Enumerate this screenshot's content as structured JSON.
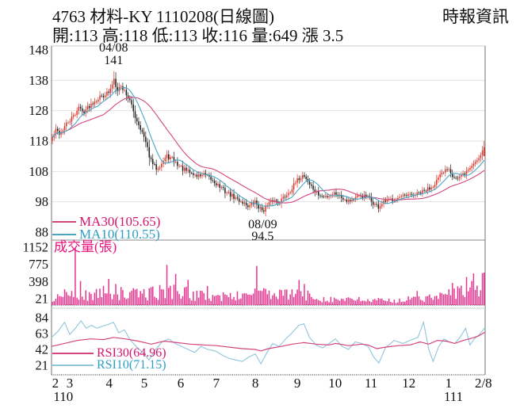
{
  "header": {
    "title": "4763  材料-KY 1110208(日線圖)",
    "source": "時報資訊",
    "quote_line": "開:113 高:118 低:113 收:116 量:649 漲 3.5"
  },
  "colors": {
    "up_candle": "#dd3226",
    "down_candle": "#1d1d1d",
    "ma30": "#d4457e",
    "ma10": "#4aa6c4",
    "ma30_label": "#d4156e",
    "ma10_label": "#2f9ec7",
    "volume": "#e8358f",
    "volume_label": "#e8127c",
    "rsi30": "#d4457e",
    "rsi10": "#8fc5da",
    "rsi30_label": "#d4156e",
    "rsi10_label": "#2f9ec7",
    "grid": "#e2e2e2",
    "border": "#888888",
    "light_border": "#cccccc",
    "axis_text": "#111111"
  },
  "chart_data": {
    "type": "candlestick",
    "title": "4763 材料-KY 1110208(日線圖)",
    "panels": [
      "price-with-moving-averages",
      "volume",
      "rsi"
    ],
    "price": {
      "ylim": [
        88,
        148
      ],
      "yticks": [
        88,
        98,
        108,
        118,
        128,
        138,
        148
      ],
      "grid_yticks": [
        98,
        108,
        118,
        128,
        138
      ],
      "ma30_label": "MA30(105.65)",
      "ma10_label": "MA10(110.55)",
      "ma30_value": 105.65,
      "ma10_value": 110.55,
      "peak_annotation": {
        "date": "04/08",
        "price": "141",
        "t": 0.143
      },
      "trough_annotation": {
        "date": "08/09",
        "price": "94.5",
        "t": 0.487
      },
      "last_candle": {
        "open": 113,
        "high": 118,
        "low": 113,
        "close": 116
      },
      "num_candles": 246,
      "close_waypoints": [
        [
          0.0,
          119
        ],
        [
          0.008,
          121.5
        ],
        [
          0.018,
          120.5
        ],
        [
          0.03,
          123
        ],
        [
          0.042,
          125
        ],
        [
          0.052,
          126.5
        ],
        [
          0.06,
          129.5
        ],
        [
          0.07,
          127.5
        ],
        [
          0.082,
          129
        ],
        [
          0.095,
          131
        ],
        [
          0.11,
          132.5
        ],
        [
          0.122,
          133.5
        ],
        [
          0.133,
          134
        ],
        [
          0.14,
          137.5
        ],
        [
          0.143,
          138.5
        ],
        [
          0.15,
          135
        ],
        [
          0.158,
          136
        ],
        [
          0.168,
          134.5
        ],
        [
          0.18,
          131
        ],
        [
          0.192,
          126
        ],
        [
          0.205,
          122
        ],
        [
          0.215,
          118
        ],
        [
          0.228,
          111.5
        ],
        [
          0.24,
          109
        ],
        [
          0.252,
          110.5
        ],
        [
          0.265,
          113
        ],
        [
          0.278,
          112
        ],
        [
          0.292,
          110
        ],
        [
          0.305,
          108.5
        ],
        [
          0.32,
          107.5
        ],
        [
          0.335,
          106.5
        ],
        [
          0.35,
          107
        ],
        [
          0.365,
          105.5
        ],
        [
          0.38,
          104
        ],
        [
          0.395,
          102
        ],
        [
          0.41,
          100.5
        ],
        [
          0.425,
          99
        ],
        [
          0.44,
          98
        ],
        [
          0.455,
          96.5
        ],
        [
          0.47,
          98
        ],
        [
          0.48,
          95.8
        ],
        [
          0.487,
          95.2
        ],
        [
          0.497,
          96.5
        ],
        [
          0.51,
          98.5
        ],
        [
          0.525,
          98
        ],
        [
          0.54,
          100
        ],
        [
          0.555,
          102.5
        ],
        [
          0.57,
          105.5
        ],
        [
          0.582,
          107
        ],
        [
          0.595,
          104
        ],
        [
          0.61,
          101
        ],
        [
          0.625,
          99.5
        ],
        [
          0.64,
          100
        ],
        [
          0.655,
          101
        ],
        [
          0.67,
          99.5
        ],
        [
          0.685,
          98.5
        ],
        [
          0.7,
          99
        ],
        [
          0.715,
          100
        ],
        [
          0.73,
          99.5
        ],
        [
          0.743,
          97.5
        ],
        [
          0.755,
          96.2
        ],
        [
          0.77,
          98
        ],
        [
          0.79,
          99
        ],
        [
          0.81,
          99.5
        ],
        [
          0.827,
          100
        ],
        [
          0.845,
          100.5
        ],
        [
          0.862,
          101.5
        ],
        [
          0.878,
          103
        ],
        [
          0.893,
          105.5
        ],
        [
          0.905,
          107.5
        ],
        [
          0.917,
          109.5
        ],
        [
          0.928,
          106.5
        ],
        [
          0.94,
          105.5
        ],
        [
          0.952,
          107
        ],
        [
          0.963,
          108.5
        ],
        [
          0.975,
          110.5
        ],
        [
          0.987,
          112.5
        ],
        [
          1.0,
          116
        ]
      ]
    },
    "volume": {
      "title": "成交量(張)",
      "yticks": [
        21,
        398,
        775,
        1152
      ],
      "ymax": 1152,
      "last_volume": 649,
      "base_waypoints": [
        [
          0,
          140
        ],
        [
          0.04,
          220
        ],
        [
          0.08,
          190
        ],
        [
          0.13,
          260
        ],
        [
          0.18,
          210
        ],
        [
          0.23,
          240
        ],
        [
          0.28,
          290
        ],
        [
          0.33,
          190
        ],
        [
          0.38,
          170
        ],
        [
          0.43,
          180
        ],
        [
          0.47,
          260
        ],
        [
          0.52,
          190
        ],
        [
          0.57,
          230
        ],
        [
          0.62,
          130
        ],
        [
          0.67,
          110
        ],
        [
          0.72,
          100
        ],
        [
          0.77,
          85
        ],
        [
          0.82,
          110
        ],
        [
          0.86,
          130
        ],
        [
          0.9,
          170
        ],
        [
          0.94,
          260
        ],
        [
          0.97,
          330
        ],
        [
          1,
          420
        ]
      ],
      "spikes": [
        [
          0.053,
          1140
        ],
        [
          0.066,
          480
        ],
        [
          0.13,
          520
        ],
        [
          0.148,
          420
        ],
        [
          0.265,
          800
        ],
        [
          0.285,
          620
        ],
        [
          0.315,
          500
        ],
        [
          0.36,
          380
        ],
        [
          0.472,
          780
        ],
        [
          0.57,
          500
        ],
        [
          0.582,
          420
        ],
        [
          0.843,
          280
        ],
        [
          0.926,
          440
        ],
        [
          0.958,
          560
        ],
        [
          0.975,
          630
        ],
        [
          1,
          649
        ]
      ]
    },
    "rsi": {
      "yticks": [
        21,
        42,
        63,
        84
      ],
      "rsi30_label": "RSI30(64.96)",
      "rsi10_label": "RSI10(71.15)",
      "rsi30_value": 64.96,
      "rsi10_value": 71.15,
      "rsi30_waypoints": [
        [
          0,
          46
        ],
        [
          0.03,
          50
        ],
        [
          0.06,
          54
        ],
        [
          0.09,
          56
        ],
        [
          0.12,
          55
        ],
        [
          0.143,
          58
        ],
        [
          0.17,
          56
        ],
        [
          0.2,
          53
        ],
        [
          0.23,
          49
        ],
        [
          0.26,
          53
        ],
        [
          0.29,
          51
        ],
        [
          0.32,
          49
        ],
        [
          0.35,
          48
        ],
        [
          0.38,
          47
        ],
        [
          0.41,
          45
        ],
        [
          0.44,
          43
        ],
        [
          0.47,
          42
        ],
        [
          0.483,
          40
        ],
        [
          0.5,
          43
        ],
        [
          0.53,
          46
        ],
        [
          0.555,
          49
        ],
        [
          0.582,
          51
        ],
        [
          0.61,
          49
        ],
        [
          0.64,
          48
        ],
        [
          0.655,
          50
        ],
        [
          0.685,
          47
        ],
        [
          0.715,
          49
        ],
        [
          0.73,
          48
        ],
        [
          0.75,
          43
        ],
        [
          0.77,
          45
        ],
        [
          0.8,
          47
        ],
        [
          0.827,
          48
        ],
        [
          0.85,
          52
        ],
        [
          0.87,
          49
        ],
        [
          0.89,
          54
        ],
        [
          0.91,
          53
        ],
        [
          0.93,
          50
        ],
        [
          0.95,
          54
        ],
        [
          0.97,
          57
        ],
        [
          0.985,
          60
        ],
        [
          1,
          64.96
        ]
      ],
      "rsi10_waypoints": [
        [
          0,
          58
        ],
        [
          0.015,
          66
        ],
        [
          0.03,
          78
        ],
        [
          0.042,
          62
        ],
        [
          0.055,
          70
        ],
        [
          0.068,
          80
        ],
        [
          0.08,
          70
        ],
        [
          0.092,
          74
        ],
        [
          0.105,
          70
        ],
        [
          0.118,
          73
        ],
        [
          0.13,
          75
        ],
        [
          0.143,
          78
        ],
        [
          0.155,
          64
        ],
        [
          0.168,
          68
        ],
        [
          0.18,
          56
        ],
        [
          0.195,
          46
        ],
        [
          0.21,
          38
        ],
        [
          0.225,
          28
        ],
        [
          0.24,
          42
        ],
        [
          0.255,
          52
        ],
        [
          0.27,
          56
        ],
        [
          0.285,
          50
        ],
        [
          0.3,
          46
        ],
        [
          0.315,
          42
        ],
        [
          0.33,
          38
        ],
        [
          0.345,
          46
        ],
        [
          0.36,
          42
        ],
        [
          0.378,
          40
        ],
        [
          0.395,
          34
        ],
        [
          0.41,
          30
        ],
        [
          0.425,
          28
        ],
        [
          0.44,
          26
        ],
        [
          0.455,
          32
        ],
        [
          0.47,
          36
        ],
        [
          0.483,
          23
        ],
        [
          0.497,
          38
        ],
        [
          0.51,
          50
        ],
        [
          0.525,
          46
        ],
        [
          0.54,
          56
        ],
        [
          0.555,
          64
        ],
        [
          0.57,
          74
        ],
        [
          0.582,
          76
        ],
        [
          0.595,
          58
        ],
        [
          0.61,
          48
        ],
        [
          0.625,
          44
        ],
        [
          0.64,
          50
        ],
        [
          0.655,
          56
        ],
        [
          0.67,
          46
        ],
        [
          0.685,
          42
        ],
        [
          0.7,
          52
        ],
        [
          0.715,
          50
        ],
        [
          0.73,
          46
        ],
        [
          0.743,
          32
        ],
        [
          0.755,
          24
        ],
        [
          0.77,
          44
        ],
        [
          0.79,
          54
        ],
        [
          0.81,
          50
        ],
        [
          0.827,
          54
        ],
        [
          0.845,
          58
        ],
        [
          0.858,
          78
        ],
        [
          0.87,
          42
        ],
        [
          0.88,
          26
        ],
        [
          0.893,
          46
        ],
        [
          0.905,
          56
        ],
        [
          0.917,
          52
        ],
        [
          0.93,
          50
        ],
        [
          0.942,
          58
        ],
        [
          0.955,
          70
        ],
        [
          0.965,
          48
        ],
        [
          0.975,
          56
        ],
        [
          0.987,
          62
        ],
        [
          1,
          71.15
        ]
      ]
    },
    "x_axis": {
      "month_ticks": [
        {
          "label": "2",
          "t": 0.009
        },
        {
          "label": "3",
          "t": 0.042
        },
        {
          "label": "4",
          "t": 0.133
        },
        {
          "label": "5",
          "t": 0.214
        },
        {
          "label": "6",
          "t": 0.298
        },
        {
          "label": "7",
          "t": 0.38
        },
        {
          "label": "8",
          "t": 0.47
        },
        {
          "label": "9",
          "t": 0.567
        },
        {
          "label": "10",
          "t": 0.654
        },
        {
          "label": "11",
          "t": 0.737
        },
        {
          "label": "12",
          "t": 0.824
        },
        {
          "label": "1",
          "t": 0.916
        },
        {
          "label": "2/8",
          "t": 0.996
        }
      ],
      "year_labels": [
        {
          "label": "110",
          "t": 0.027
        },
        {
          "label": "111",
          "t": 0.927
        }
      ]
    }
  }
}
